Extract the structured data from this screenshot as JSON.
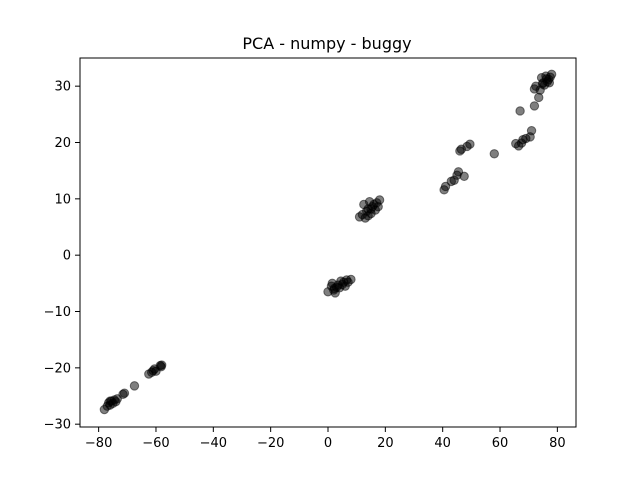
{
  "chart_data": {
    "type": "scatter",
    "title": "PCA - numpy - buggy",
    "xlabel": "",
    "ylabel": "",
    "xlim": [
      -86.5,
      86.5
    ],
    "ylim": [
      -30.5,
      35.0
    ],
    "grid": false,
    "x_ticks": [
      -80,
      -60,
      -40,
      -20,
      0,
      20,
      40,
      60,
      80
    ],
    "x_tick_labels": [
      "−80",
      "−60",
      "−40",
      "−20",
      "0",
      "20",
      "40",
      "60",
      "80"
    ],
    "y_ticks": [
      -30,
      -20,
      -10,
      0,
      10,
      20,
      30
    ],
    "y_tick_labels": [
      "−30",
      "−20",
      "−10",
      "0",
      "10",
      "20",
      "30"
    ],
    "marker_color": "#000000",
    "marker_alpha": 0.5,
    "points": [
      {
        "x": -78,
        "y": -27.4
      },
      {
        "x": -77,
        "y": -26.8
      },
      {
        "x": -76.5,
        "y": -26.2
      },
      {
        "x": -76,
        "y": -26.6
      },
      {
        "x": -75.5,
        "y": -25.9
      },
      {
        "x": -75,
        "y": -26.3
      },
      {
        "x": -74.5,
        "y": -25.7
      },
      {
        "x": -74,
        "y": -26.0
      },
      {
        "x": -73.5,
        "y": -25.5
      },
      {
        "x": -76,
        "y": -25.9
      },
      {
        "x": -71.5,
        "y": -24.7
      },
      {
        "x": -71,
        "y": -24.5
      },
      {
        "x": -67.5,
        "y": -23.2
      },
      {
        "x": -62.5,
        "y": -21.1
      },
      {
        "x": -61.5,
        "y": -20.8
      },
      {
        "x": -61,
        "y": -20.5
      },
      {
        "x": -60.5,
        "y": -20.2
      },
      {
        "x": -60,
        "y": -20.6
      },
      {
        "x": -58.5,
        "y": -19.6
      },
      {
        "x": -58,
        "y": -19.5
      },
      {
        "x": -58.2,
        "y": -19.8
      },
      {
        "x": 0,
        "y": -6.5
      },
      {
        "x": 1.2,
        "y": -5.5
      },
      {
        "x": 1.5,
        "y": -5.0
      },
      {
        "x": 2,
        "y": -6.2
      },
      {
        "x": 2.5,
        "y": -6.7
      },
      {
        "x": 3,
        "y": -5.7
      },
      {
        "x": 3.5,
        "y": -5.3
      },
      {
        "x": 4,
        "y": -5.8
      },
      {
        "x": 4.5,
        "y": -4.6
      },
      {
        "x": 5,
        "y": -5.2
      },
      {
        "x": 5.5,
        "y": -4.8
      },
      {
        "x": 6,
        "y": -5.5
      },
      {
        "x": 6.5,
        "y": -4.4
      },
      {
        "x": 7,
        "y": -4.8
      },
      {
        "x": 8,
        "y": -4.3
      },
      {
        "x": 2.2,
        "y": -5.9
      },
      {
        "x": 11,
        "y": 6.8
      },
      {
        "x": 12,
        "y": 7.2
      },
      {
        "x": 12.5,
        "y": 9.0
      },
      {
        "x": 13,
        "y": 6.6
      },
      {
        "x": 13.5,
        "y": 7.8
      },
      {
        "x": 14,
        "y": 8.2
      },
      {
        "x": 14.5,
        "y": 9.5
      },
      {
        "x": 15,
        "y": 7.4
      },
      {
        "x": 15.5,
        "y": 8.6
      },
      {
        "x": 16,
        "y": 9.0
      },
      {
        "x": 16.5,
        "y": 8.0
      },
      {
        "x": 17,
        "y": 9.3
      },
      {
        "x": 17.5,
        "y": 8.6
      },
      {
        "x": 18,
        "y": 9.8
      },
      {
        "x": 14,
        "y": 7.0
      },
      {
        "x": 15,
        "y": 8.2
      },
      {
        "x": 40.5,
        "y": 11.6
      },
      {
        "x": 41,
        "y": 12.2
      },
      {
        "x": 43,
        "y": 13.1
      },
      {
        "x": 44,
        "y": 13.3
      },
      {
        "x": 45,
        "y": 14.2
      },
      {
        "x": 45.5,
        "y": 14.8
      },
      {
        "x": 47.5,
        "y": 14.0
      },
      {
        "x": 46,
        "y": 18.5
      },
      {
        "x": 46.5,
        "y": 18.8
      },
      {
        "x": 48.5,
        "y": 19.3
      },
      {
        "x": 49.5,
        "y": 19.7
      },
      {
        "x": 58,
        "y": 18.0
      },
      {
        "x": 65.5,
        "y": 19.8
      },
      {
        "x": 66.5,
        "y": 19.4
      },
      {
        "x": 67.5,
        "y": 19.9
      },
      {
        "x": 68,
        "y": 20.5
      },
      {
        "x": 69,
        "y": 20.7
      },
      {
        "x": 70.5,
        "y": 21.0
      },
      {
        "x": 71,
        "y": 22.1
      },
      {
        "x": 67,
        "y": 25.6
      },
      {
        "x": 72,
        "y": 26.5
      },
      {
        "x": 72,
        "y": 29.5
      },
      {
        "x": 72.5,
        "y": 30.0
      },
      {
        "x": 73.5,
        "y": 28.0
      },
      {
        "x": 74,
        "y": 29.3
      },
      {
        "x": 74.5,
        "y": 31.5
      },
      {
        "x": 75,
        "y": 30.6
      },
      {
        "x": 75.5,
        "y": 30.2
      },
      {
        "x": 76,
        "y": 31.8
      },
      {
        "x": 76.5,
        "y": 30.8
      },
      {
        "x": 77,
        "y": 31.2
      },
      {
        "x": 77.5,
        "y": 31.6
      },
      {
        "x": 78,
        "y": 32.1
      },
      {
        "x": 74.8,
        "y": 30.4
      },
      {
        "x": 76.2,
        "y": 31.3
      },
      {
        "x": 77.2,
        "y": 30.6
      }
    ]
  }
}
